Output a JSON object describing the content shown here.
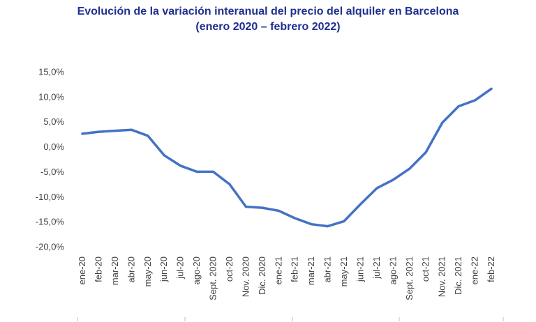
{
  "chart_data": {
    "type": "line",
    "title": "Evolución de la variación interanual del precio del alquiler en Barcelona",
    "subtitle": "(enero 2020 – febrero 2022)",
    "xlabel": "",
    "ylabel": "",
    "ylim": [
      -20,
      15
    ],
    "yticks": [
      "15,0%",
      "10,0%",
      "5,0%",
      "0,0%",
      "-5,0%",
      "-10,0%",
      "-15,0%",
      "-20,0%"
    ],
    "ytick_values": [
      15,
      10,
      5,
      0,
      -5,
      -10,
      -15,
      -20
    ],
    "grid": false,
    "legend": "none",
    "line_color": "#4472c4",
    "categories": [
      "ene-20",
      "feb-20",
      "mar-20",
      "abr-20",
      "may-20",
      "jun-20",
      "jul-20",
      "ago-20",
      "Sept. 2020",
      "oct-20",
      "Nov. 2020",
      "Dic. 2020",
      "ene-21",
      "feb-21",
      "mar-21",
      "abr-21",
      "may-21",
      "jun-21",
      "jul-21",
      "ago-21",
      "Sept. 2021",
      "oct-21",
      "Nov. 2021",
      "Dic. 2021",
      "ene-22",
      "feb-22"
    ],
    "series": [
      {
        "values": [
          2.6,
          3.0,
          3.2,
          3.4,
          2.2,
          -1.7,
          -3.8,
          -5.0,
          -5.0,
          -7.5,
          -12.0,
          -12.2,
          -12.8,
          -14.3,
          -15.5,
          -15.9,
          -14.9,
          -11.5,
          -8.3,
          -6.6,
          -4.4,
          -1.1,
          4.8,
          8.1,
          9.3,
          11.6
        ]
      }
    ]
  }
}
